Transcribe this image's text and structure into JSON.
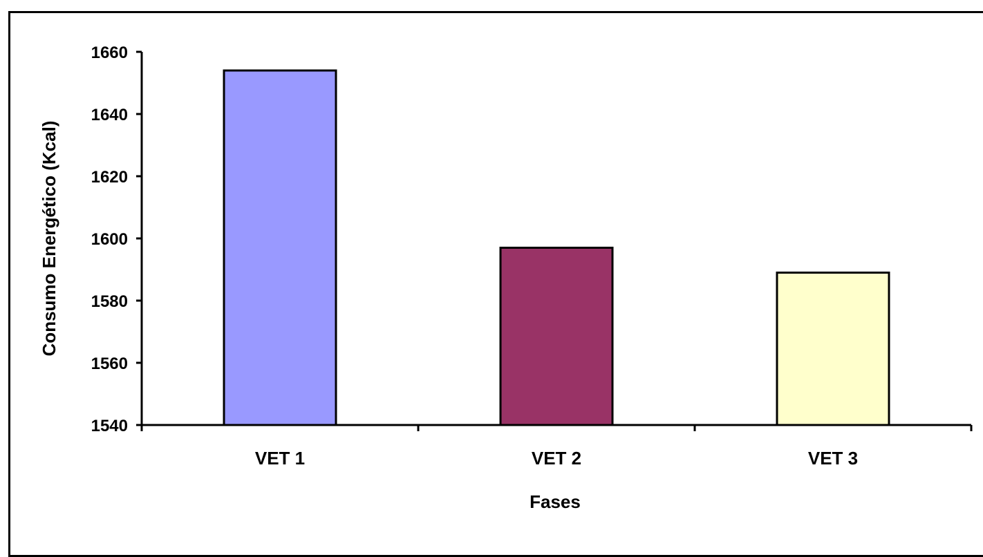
{
  "chart_data": {
    "type": "bar",
    "categories": [
      "VET 1",
      "VET 2",
      "VET 3"
    ],
    "values": [
      1654,
      1597,
      1589
    ],
    "colors": [
      "#9999ff",
      "#993366",
      "#ffffcc"
    ],
    "xlabel": "Fases",
    "ylabel": "Consumo Energético (Kcal)",
    "ylim": [
      1540,
      1660
    ],
    "yticks": [
      "1540",
      "1560",
      "1580",
      "1600",
      "1620",
      "1640",
      "1660"
    ],
    "grid": false,
    "legend": "none"
  }
}
